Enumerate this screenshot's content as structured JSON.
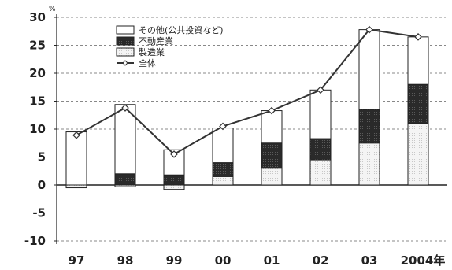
{
  "chart_data": {
    "type": "bar",
    "subtype": "stacked-bar-with-line",
    "title": "",
    "xlabel": "",
    "ylabel": "",
    "y_unit": "%",
    "ylim": [
      -10,
      30
    ],
    "yticks": [
      -10,
      -5,
      0,
      5,
      10,
      15,
      20,
      25,
      30
    ],
    "grid": "horizontal-dashed",
    "legend_position": "top-left",
    "categories": [
      "97",
      "98",
      "99",
      "00",
      "01",
      "02",
      "03",
      "2004年"
    ],
    "series": [
      {
        "name": "製造業",
        "kind": "bar",
        "color": "#f2f2f2",
        "values": [
          -0.5,
          -0.3,
          -0.8,
          1.5,
          3.0,
          4.5,
          7.5,
          11.0
        ]
      },
      {
        "name": "不動産業",
        "kind": "bar",
        "color": "#2e2e2e",
        "values": [
          0,
          2.0,
          1.8,
          2.5,
          4.5,
          3.8,
          6.0,
          7.0
        ]
      },
      {
        "name": "その他(公共投資など)",
        "kind": "bar",
        "color": "#ffffff",
        "values": [
          9.5,
          12.4,
          4.5,
          6.2,
          5.8,
          8.7,
          14.3,
          8.5
        ]
      },
      {
        "name": "全体",
        "kind": "line",
        "color": "#333333",
        "values": [
          8.9,
          13.8,
          5.5,
          10.5,
          13.3,
          17.0,
          27.8,
          26.5
        ]
      }
    ],
    "legend_order": [
      "その他(公共投資など)",
      "不動産業",
      "製造業",
      "全体"
    ]
  }
}
